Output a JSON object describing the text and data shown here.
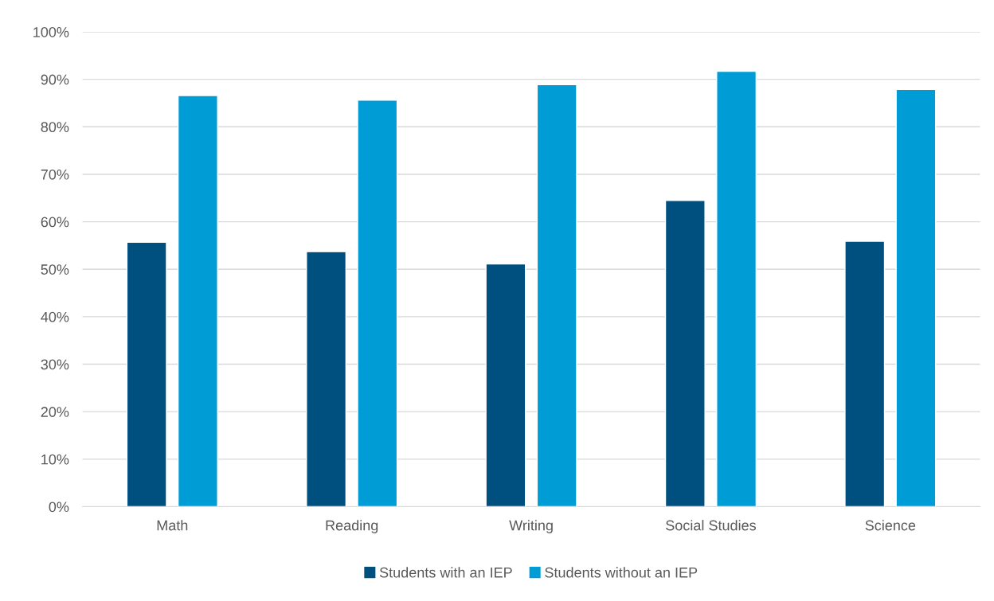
{
  "chart_data": {
    "type": "bar",
    "categories": [
      "Math",
      "Reading",
      "Writing",
      "Social Studies",
      "Science"
    ],
    "series": [
      {
        "name": "Students with an IEP",
        "color": "#00507f",
        "values": [
          55.7,
          53.7,
          51.1,
          64.5,
          55.9
        ]
      },
      {
        "name": "Students without an IEP",
        "color": "#009cd6",
        "values": [
          86.6,
          85.6,
          88.9,
          91.7,
          87.9
        ]
      }
    ],
    "ylim": [
      0,
      100
    ],
    "yticks": [
      {
        "value": 0,
        "label": "0%"
      },
      {
        "value": 10,
        "label": "10%"
      },
      {
        "value": 20,
        "label": "20%"
      },
      {
        "value": 30,
        "label": "30%"
      },
      {
        "value": 40,
        "label": "40%"
      },
      {
        "value": 50,
        "label": "50%"
      },
      {
        "value": 60,
        "label": "60%"
      },
      {
        "value": 70,
        "label": "70%"
      },
      {
        "value": 80,
        "label": "80%"
      },
      {
        "value": 90,
        "label": "90%"
      },
      {
        "value": 100,
        "label": "100%"
      }
    ],
    "grid": "y",
    "legend": "bottom"
  }
}
